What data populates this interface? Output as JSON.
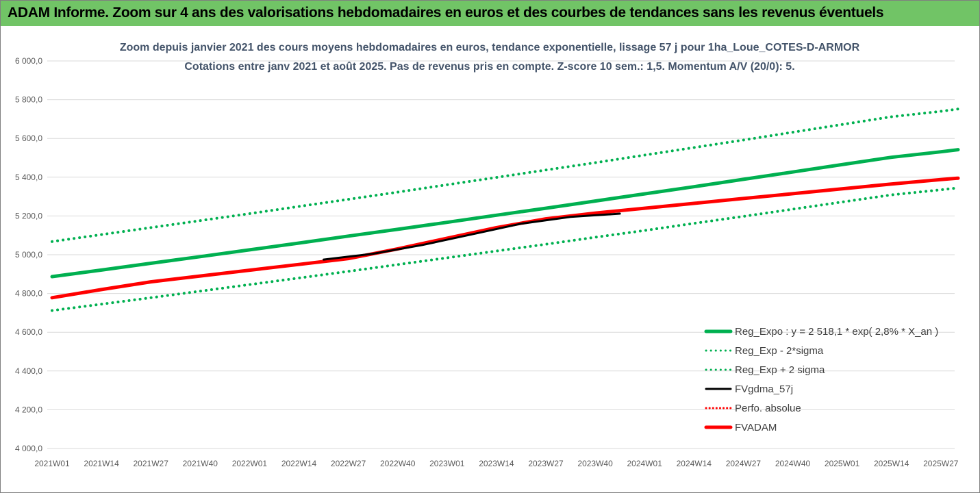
{
  "header": {
    "title": "ADAM Informe. Zoom sur 4 ans des valorisations hebdomadaires en euros et des courbes de tendances sans les revenus éventuels"
  },
  "colors": {
    "banner": "#71c466",
    "reg_green": "#00b050",
    "fvadam_red": "#ff0000",
    "fvgdma_black": "#000000",
    "grid": "#d9d9d9"
  },
  "chart_data": {
    "type": "line",
    "title": "Zoom depuis janvier 2021 des cours moyens hebdomadaires en euros, tendance exponentielle, lissage 57 j pour 1ha_Loue_COTES-D-ARMOR",
    "subtitle": "Cotations entre janv 2021 et août 2025.  Pas de revenus pris en compte. Z-score 10 sem.: 1,5. Momentum A/V (20/0): 5.",
    "xlabel": "",
    "ylabel": "",
    "ylim": [
      4000,
      6000
    ],
    "yticks": [
      "6 000,0",
      "5 800,0",
      "5 600,0",
      "5 400,0",
      "5 200,0",
      "5 000,0",
      "4 800,0",
      "4 600,0",
      "4 400,0",
      "4 200,0",
      "4 000,0"
    ],
    "categories": [
      "2021W01",
      "2021W14",
      "2021W27",
      "2021W40",
      "2022W01",
      "2022W14",
      "2022W27",
      "2022W40",
      "2023W01",
      "2023W14",
      "2023W27",
      "2023W40",
      "2024W01",
      "2024W14",
      "2024W27",
      "2024W40",
      "2025W01",
      "2025W14",
      "2025W27"
    ],
    "grid": true,
    "legend_position": "bottom-right",
    "series": [
      {
        "name": "Reg_Expo : y = 2 518,1 * exp( 2,8% *  X_an )",
        "style": "solid-thick",
        "color": "#00b050",
        "x": [
          0,
          1,
          2,
          3,
          4,
          5,
          6,
          7,
          8,
          9,
          10,
          11,
          12,
          13,
          14,
          15,
          16,
          17,
          18,
          18.35
        ],
        "values": [
          4887,
          4921,
          4956,
          4990,
          5025,
          5060,
          5096,
          5131,
          5167,
          5204,
          5240,
          5277,
          5314,
          5351,
          5389,
          5427,
          5465,
          5503,
          5531,
          5542
        ]
      },
      {
        "name": "Reg_Exp - 2*sigma",
        "style": "dotted",
        "color": "#00b050",
        "x": [
          0,
          1,
          2,
          3,
          4,
          5,
          6,
          7,
          8,
          9,
          10,
          11,
          12,
          13,
          14,
          15,
          16,
          17,
          18,
          18.35
        ],
        "values": [
          4712,
          4745,
          4778,
          4812,
          4846,
          4880,
          4914,
          4949,
          4984,
          5019,
          5054,
          5090,
          5125,
          5162,
          5198,
          5235,
          5272,
          5309,
          5335,
          5345
        ]
      },
      {
        "name": "Reg_Exp + 2 sigma",
        "style": "dotted",
        "color": "#00b050",
        "x": [
          0,
          1,
          2,
          3,
          4,
          5,
          6,
          7,
          8,
          9,
          10,
          11,
          12,
          13,
          14,
          15,
          16,
          17,
          18,
          18.35
        ],
        "values": [
          5068,
          5104,
          5140,
          5176,
          5212,
          5249,
          5286,
          5323,
          5361,
          5399,
          5437,
          5475,
          5514,
          5553,
          5592,
          5632,
          5672,
          5712,
          5740,
          5752
        ]
      },
      {
        "name": "FVgdma_57j",
        "style": "solid-thin",
        "color": "#000000",
        "x": [
          5.5,
          6.5,
          7.5,
          8.5,
          9.5,
          10.5,
          11.5
        ],
        "values": [
          4975,
          5005,
          5050,
          5105,
          5160,
          5195,
          5212
        ]
      },
      {
        "name": "Perfo. absolue",
        "style": "dotted-red",
        "color": "#ff0000",
        "x": [],
        "values": []
      },
      {
        "name": "FVADAM",
        "style": "solid-thick",
        "color": "#ff0000",
        "x": [
          0,
          1,
          2,
          3,
          4,
          5,
          6,
          7,
          8,
          9,
          10,
          11,
          12,
          13,
          14,
          15,
          16,
          17,
          18,
          18.35
        ],
        "values": [
          4778,
          4820,
          4860,
          4890,
          4920,
          4950,
          4980,
          5030,
          5085,
          5140,
          5185,
          5215,
          5240,
          5265,
          5290,
          5315,
          5340,
          5365,
          5388,
          5395
        ]
      }
    ]
  }
}
